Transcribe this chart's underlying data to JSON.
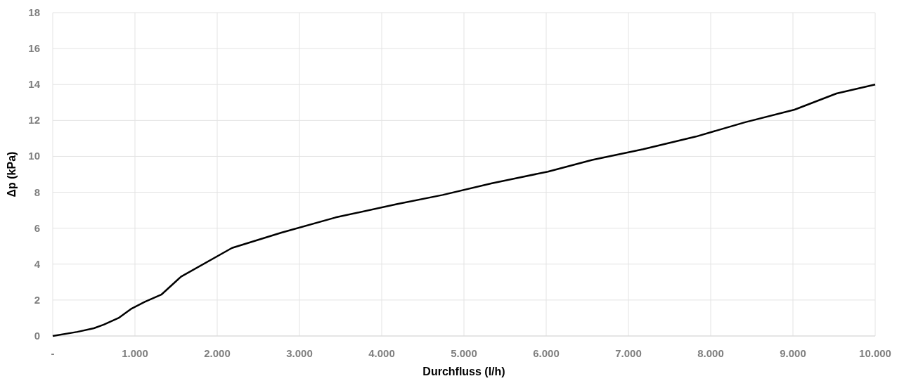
{
  "chart_data": {
    "type": "line",
    "xlabel": "Durchfluss (l/h)",
    "ylabel": "Δp (kPa)",
    "x": [
      0,
      300,
      500,
      620,
      800,
      950,
      1120,
      1320,
      1560,
      2180,
      2780,
      3440,
      4190,
      4740,
      5340,
      6020,
      6560,
      7180,
      7820,
      8420,
      9020,
      9530,
      10000
    ],
    "series": [
      {
        "color": "#000000",
        "values": [
          0,
          0.23,
          0.43,
          0.63,
          1.0,
          1.5,
          1.9,
          2.3,
          3.3,
          4.9,
          5.75,
          6.6,
          7.35,
          7.85,
          8.5,
          9.15,
          9.8,
          10.4,
          11.1,
          11.9,
          12.6,
          13.5,
          14.0
        ]
      }
    ],
    "xlim": [
      0,
      10000
    ],
    "xticks": [
      {
        "value": 0,
        "label": "-"
      },
      {
        "value": 1000,
        "label": "1.000"
      },
      {
        "value": 2000,
        "label": "2.000"
      },
      {
        "value": 3000,
        "label": "3.000"
      },
      {
        "value": 4000,
        "label": "4.000"
      },
      {
        "value": 5000,
        "label": "5.000"
      },
      {
        "value": 6000,
        "label": "6.000"
      },
      {
        "value": 7000,
        "label": "7.000"
      },
      {
        "value": 8000,
        "label": "8.000"
      },
      {
        "value": 9000,
        "label": "9.000"
      },
      {
        "value": 10000,
        "label": "10.000"
      }
    ],
    "ylim": [
      0,
      18
    ],
    "yticks": [
      0,
      2,
      4,
      6,
      8,
      10,
      12,
      14,
      16,
      18
    ],
    "grid": true,
    "marker": "none",
    "line_style": "solid"
  }
}
